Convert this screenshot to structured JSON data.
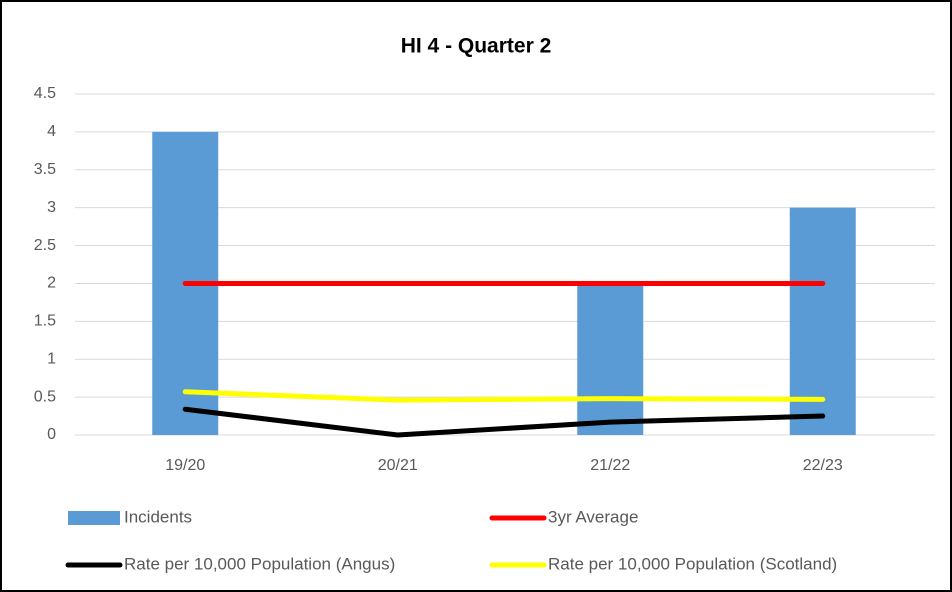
{
  "chart_data": {
    "type": "bar",
    "title": "HI 4 - Quarter 2",
    "categories": [
      "19/20",
      "20/21",
      "21/22",
      "22/23"
    ],
    "series": [
      {
        "name": "Incidents",
        "type": "bar",
        "color": "#5b9bd5",
        "values": [
          4,
          0,
          2,
          3
        ]
      },
      {
        "name": "3yr Average",
        "type": "line",
        "color": "#ff0000",
        "values": [
          2,
          2,
          2,
          2
        ]
      },
      {
        "name": "Rate per 10,000 Population (Angus)",
        "type": "line",
        "color": "#000000",
        "values": [
          0.34,
          0,
          0.17,
          0.25
        ]
      },
      {
        "name": "Rate per 10,000 Population (Scotland)",
        "type": "line",
        "color": "#ffff00",
        "values": [
          0.57,
          0.46,
          0.48,
          0.47
        ]
      }
    ],
    "ylim": [
      0,
      4.5
    ],
    "yticks": [
      0,
      0.5,
      1,
      1.5,
      2,
      2.5,
      3,
      3.5,
      4,
      4.5
    ],
    "grid": true
  }
}
